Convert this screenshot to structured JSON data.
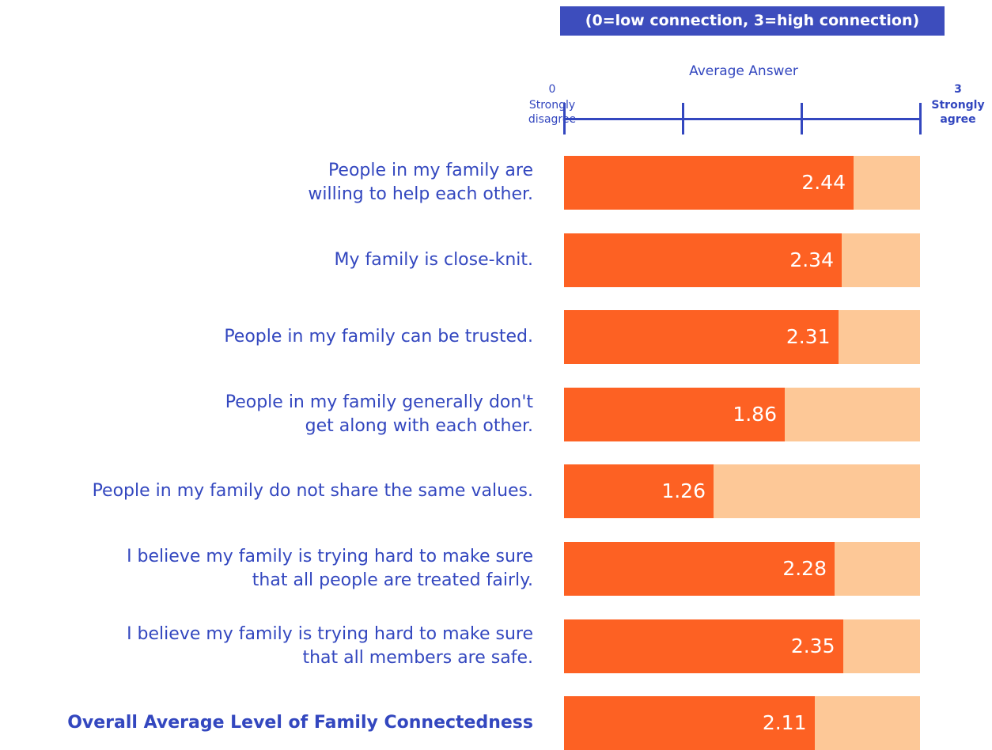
{
  "chart_data": {
    "type": "bar",
    "subtitle": "(0=low connection, 3=high connection)",
    "x_label": "Average Answer",
    "x_end_labels": [
      "Strongly disagree",
      "Strongly agree"
    ],
    "categories": [
      "People in my family are\nwilling to help each other.",
      "My family is close-knit.",
      "People in my family can be trusted.",
      "People in my family generally don't\nget along with each other.",
      "People in my family do not share the same values.",
      "I believe my family is trying hard to make sure\nthat all people are treated fairly.",
      "I believe my family is trying hard to make sure\nthat all members are safe.",
      "Overall Average Level of Family Connectedness"
    ],
    "values": [
      2.44,
      2.34,
      2.31,
      1.86,
      1.26,
      2.28,
      2.35,
      2.11
    ],
    "color": "#fd6123",
    "background_color": "#fdc897",
    "xlim": [
      0,
      3
    ],
    "xticks": [
      0,
      1,
      2,
      3
    ]
  }
}
